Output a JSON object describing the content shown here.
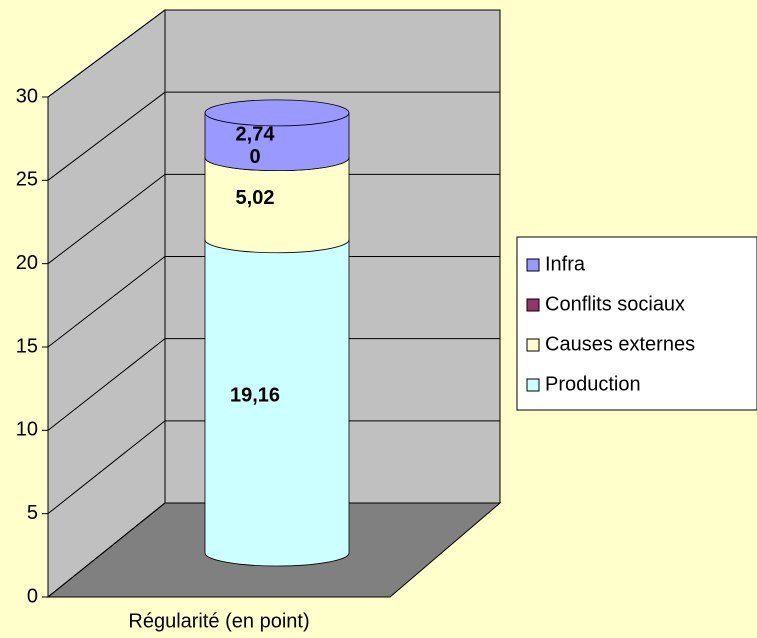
{
  "chart_data": {
    "type": "stacked-cylinder",
    "categories": [
      "Régularité (en point)"
    ],
    "series": [
      {
        "name": "Production",
        "color": "#ccffff",
        "values": [
          19.16
        ],
        "value_labels": [
          "19,16"
        ]
      },
      {
        "name": "Causes externes",
        "color": "#ffffcc",
        "values": [
          5.02
        ],
        "value_labels": [
          "5,02"
        ]
      },
      {
        "name": "Conflits sociaux",
        "color": "#993366",
        "values": [
          0
        ],
        "value_labels": [
          "0"
        ]
      },
      {
        "name": "Infra",
        "color": "#9999ff",
        "values": [
          2.74
        ],
        "value_labels": [
          "2,74"
        ]
      }
    ],
    "ylim": [
      0,
      30
    ],
    "yticks": [
      0,
      5,
      10,
      15,
      20,
      25,
      30
    ],
    "grid": true,
    "legend": "right"
  }
}
